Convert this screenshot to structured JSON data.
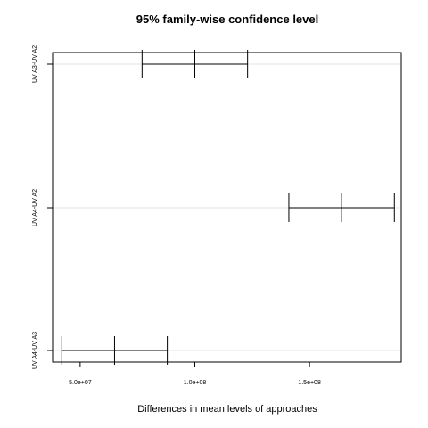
{
  "chart_data": {
    "type": "interval",
    "title": "95% family-wise confidence level",
    "xlabel": "Differences in mean levels of approaches",
    "ylabel": "",
    "xlim": [
      38000000,
      190000000
    ],
    "x_ticks": [
      {
        "value": 50000000,
        "label": "5.0e+07"
      },
      {
        "value": 100000000,
        "label": "1.0e+08"
      },
      {
        "value": 150000000,
        "label": "1.5e+08"
      }
    ],
    "comparisons": [
      {
        "label": "UV A3-UV A2",
        "lower": 77000000,
        "estimate": 100000000,
        "upper": 123000000
      },
      {
        "label": "UV A4-UV A2",
        "lower": 141000000,
        "estimate": 164000000,
        "upper": 187000000
      },
      {
        "label": "UV A4-UV A3",
        "lower": 42000000,
        "estimate": 65000000,
        "upper": 88000000
      }
    ],
    "grid": true,
    "colors": {
      "line": "#000000",
      "grid": "#e6e6e6",
      "background": "#ffffff"
    }
  }
}
